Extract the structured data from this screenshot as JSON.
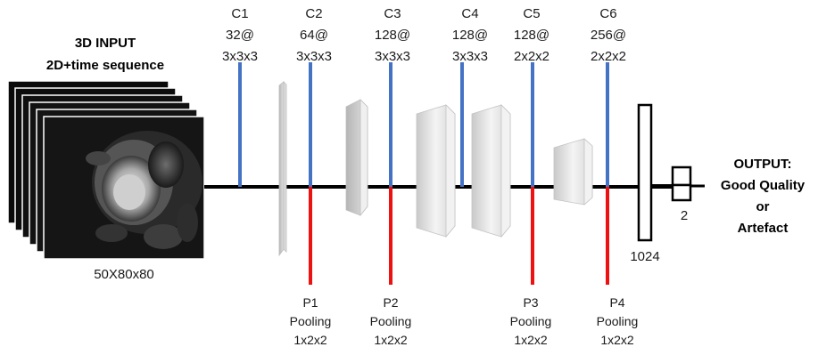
{
  "input": {
    "title": "3D INPUT",
    "subtitle": "2D+time sequence",
    "size": "50X80x80"
  },
  "conv_layers": [
    {
      "name": "C1",
      "filters": "32@",
      "kernel": "3x3x3"
    },
    {
      "name": "C2",
      "filters": "64@",
      "kernel": "3x3x3"
    },
    {
      "name": "C3",
      "filters": "128@",
      "kernel": "3x3x3"
    },
    {
      "name": "C4",
      "filters": "128@",
      "kernel": "3x3x3"
    },
    {
      "name": "C5",
      "filters": "128@",
      "kernel": "2x2x2"
    },
    {
      "name": "C6",
      "filters": "256@",
      "kernel": "2x2x2"
    }
  ],
  "pool_layers": [
    {
      "name": "P1",
      "type": "Pooling",
      "kernel": "1x2x2"
    },
    {
      "name": "P2",
      "type": "Pooling",
      "kernel": "1x2x2"
    },
    {
      "name": "P3",
      "type": "Pooling",
      "kernel": "1x2x2"
    },
    {
      "name": "P4",
      "type": "Pooling",
      "kernel": "1x2x2"
    }
  ],
  "dense": {
    "units": "1024"
  },
  "out": {
    "units": "2"
  },
  "output": {
    "line1": "OUTPUT:",
    "line2": "Good Quality",
    "line3": "or",
    "line4": "Artefact"
  },
  "colors": {
    "conv": "#4472c4",
    "pool": "#ee1111",
    "axis": "#000000",
    "block": "#d9d9d9"
  }
}
